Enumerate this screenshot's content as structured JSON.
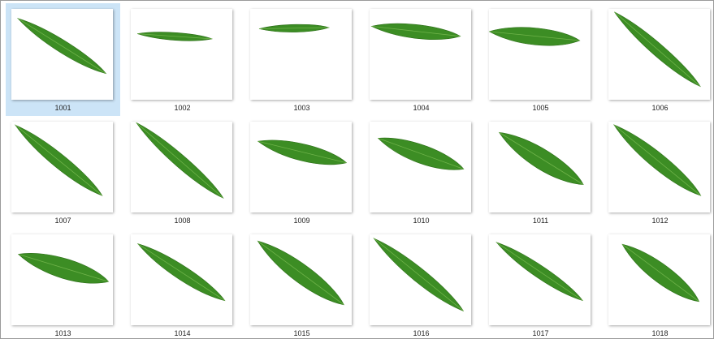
{
  "items": [
    {
      "label": "1001",
      "selected": true
    },
    {
      "label": "1002"
    },
    {
      "label": "1003"
    },
    {
      "label": "1004"
    },
    {
      "label": "1005"
    },
    {
      "label": "1006"
    },
    {
      "label": "1007"
    },
    {
      "label": "1008"
    },
    {
      "label": "1009"
    },
    {
      "label": "1010"
    },
    {
      "label": "1011"
    },
    {
      "label": "1012"
    },
    {
      "label": "1013"
    },
    {
      "label": "1014"
    },
    {
      "label": "1015"
    },
    {
      "label": "1016"
    },
    {
      "label": "1017"
    },
    {
      "label": "1018"
    }
  ]
}
